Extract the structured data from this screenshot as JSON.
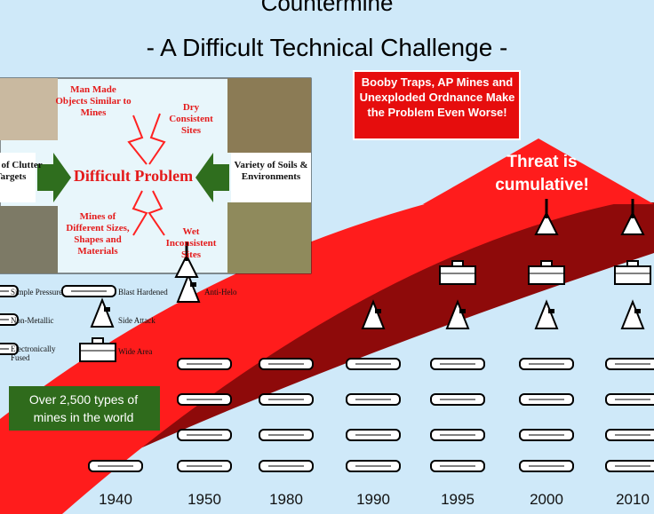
{
  "title_top": "Countermine",
  "title": "- A Difficult Technical Challenge -",
  "panel": {
    "top_left": "Man Made Objects Similar to Mines",
    "top_right": "Dry Consistent Sites",
    "left": "Variety of Clutter & Targets",
    "center": "Difficult Problem",
    "right": "Variety of Soils & Environments",
    "bottom_left": "Mines of Different Sizes, Shapes and Materials",
    "bottom_right": "Wet Inconsistent Sites"
  },
  "legend": [
    "Simple Pressure",
    "Blast Hardened",
    "Anti-Helo",
    "Non-Metallic",
    "Side Attack",
    "Electronically Fused",
    "Wide Area"
  ],
  "callout": "Booby Traps, AP Mines and Unexploded Ordnance Make the Problem Even Worse!",
  "arrow_label": "Threat is cumulative!",
  "note": "Over 2,500 types of mines in the world",
  "years": [
    "1940",
    "1950",
    "1980",
    "1990",
    "1995",
    "2000",
    "2010"
  ]
}
